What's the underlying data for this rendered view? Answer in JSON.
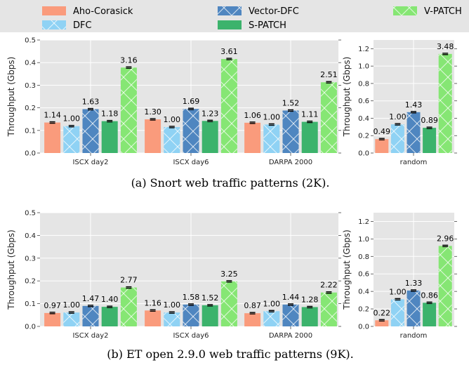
{
  "legend": [
    {
      "name": "Aho-Corasick",
      "color": "#fa9b7c",
      "hatch": false
    },
    {
      "name": "DFC",
      "color": "#8fd2f4",
      "hatch": true
    },
    {
      "name": "Vector-DFC",
      "color": "#4f86c0",
      "hatch": true
    },
    {
      "name": "S-PATCH",
      "color": "#3cb36c",
      "hatch": false
    },
    {
      "name": "V-PATCH",
      "color": "#86e674",
      "hatch": true
    }
  ],
  "chart_data": [
    {
      "type": "bar",
      "caption": "(a) Snort web traffic patterns (2K).",
      "ylabel": "Throughput (Gbps)",
      "main": {
        "categories": [
          "ISCX day2",
          "ISCX day6",
          "DARPA 2000"
        ],
        "ylim": [
          0,
          0.5
        ],
        "yticks": [
          "0.0",
          "0.1",
          "0.2",
          "0.3",
          "0.4",
          "0.5"
        ],
        "series": [
          {
            "name": "Aho-Corasick",
            "values": [
              0.135,
              0.149,
              0.134
            ],
            "labels": [
              "1.14",
              "1.30",
              "1.06"
            ]
          },
          {
            "name": "DFC",
            "values": [
              0.119,
              0.115,
              0.126
            ],
            "labels": [
              "1.00",
              "1.00",
              "1.00"
            ]
          },
          {
            "name": "Vector-DFC",
            "values": [
              0.194,
              0.195,
              0.188
            ],
            "labels": [
              "1.63",
              "1.69",
              "1.52"
            ]
          },
          {
            "name": "S-PATCH",
            "values": [
              0.141,
              0.142,
              0.138
            ],
            "labels": [
              "1.18",
              "1.23",
              "1.11"
            ]
          },
          {
            "name": "V-PATCH",
            "values": [
              0.378,
              0.416,
              0.313
            ],
            "labels": [
              "3.16",
              "3.61",
              "2.51"
            ]
          }
        ]
      },
      "random": {
        "categories": [
          "random"
        ],
        "ylim": [
          0,
          1.3
        ],
        "yticks": [
          "0.0",
          "0.2",
          "0.4",
          "0.6",
          "0.8",
          "1.0",
          "1.2"
        ],
        "series": [
          {
            "name": "Aho-Corasick",
            "values": [
              0.16
            ],
            "labels": [
              "0.49"
            ]
          },
          {
            "name": "DFC",
            "values": [
              0.33
            ],
            "labels": [
              "1.00"
            ]
          },
          {
            "name": "Vector-DFC",
            "values": [
              0.47
            ],
            "labels": [
              "1.43"
            ]
          },
          {
            "name": "S-PATCH",
            "values": [
              0.29
            ],
            "labels": [
              "0.89"
            ]
          },
          {
            "name": "V-PATCH",
            "values": [
              1.14
            ],
            "labels": [
              "3.48"
            ]
          }
        ]
      }
    },
    {
      "type": "bar",
      "caption": "(b) ET open 2.9.0 web traffic patterns (9K).",
      "ylabel": "Throughput (Gbps)",
      "main": {
        "categories": [
          "ISCX day2",
          "ISCX day6",
          "DARPA 2000"
        ],
        "ylim": [
          0,
          0.5
        ],
        "yticks": [
          "0.0",
          "0.1",
          "0.2",
          "0.3",
          "0.4",
          "0.5"
        ],
        "series": [
          {
            "name": "Aho-Corasick",
            "values": [
              0.059,
              0.07,
              0.058
            ],
            "labels": [
              "0.97",
              "1.16",
              "0.87"
            ]
          },
          {
            "name": "DFC",
            "values": [
              0.061,
              0.061,
              0.067
            ],
            "labels": [
              "1.00",
              "1.00",
              "1.00"
            ]
          },
          {
            "name": "Vector-DFC",
            "values": [
              0.09,
              0.096,
              0.096
            ],
            "labels": [
              "1.47",
              "1.58",
              "1.44"
            ]
          },
          {
            "name": "S-PATCH",
            "values": [
              0.086,
              0.093,
              0.085
            ],
            "labels": [
              "1.40",
              "1.52",
              "1.28"
            ]
          },
          {
            "name": "V-PATCH",
            "values": [
              0.171,
              0.198,
              0.149
            ],
            "labels": [
              "2.77",
              "3.25",
              "2.22"
            ]
          }
        ]
      },
      "random": {
        "categories": [
          "random"
        ],
        "ylim": [
          0,
          1.3
        ],
        "yticks": [
          "0.0",
          "0.2",
          "0.4",
          "0.6",
          "0.8",
          "1.0",
          "1.2"
        ],
        "series": [
          {
            "name": "Aho-Corasick",
            "values": [
              0.07
            ],
            "labels": [
              "0.22"
            ]
          },
          {
            "name": "DFC",
            "values": [
              0.31
            ],
            "labels": [
              "1.00"
            ]
          },
          {
            "name": "Vector-DFC",
            "values": [
              0.41
            ],
            "labels": [
              "1.33"
            ]
          },
          {
            "name": "S-PATCH",
            "values": [
              0.27
            ],
            "labels": [
              "0.86"
            ]
          },
          {
            "name": "V-PATCH",
            "values": [
              0.92
            ],
            "labels": [
              "2.96"
            ]
          }
        ]
      }
    }
  ]
}
